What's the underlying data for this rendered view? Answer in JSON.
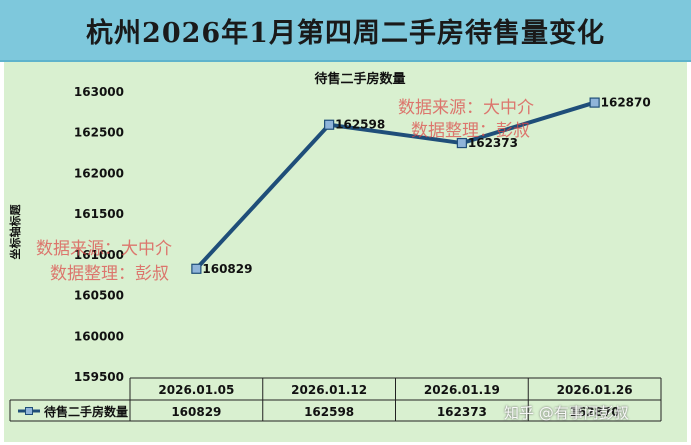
{
  "banner_title": "杭州2026年1月第四周二手房待售量变化",
  "watermarks": {
    "top_source": "数据来源：大中介",
    "top_editor": "数据整理：彭叔",
    "left_source": "数据来源：大中介",
    "left_editor": "数据整理：彭叔",
    "footer": "知乎 @有事问彭叔"
  },
  "colors": {
    "banner_bg": "#7ec8dc",
    "panel_bg": "#d9f0d0",
    "series_line": "#1f4e79",
    "marker_fill": "#8fb4d9"
  },
  "chart_data": {
    "type": "line",
    "title": "待售二手房数量",
    "ylabel": "坐标轴标题",
    "xlabel": "",
    "categories": [
      "2026.01.05",
      "2026.01.12",
      "2026.01.19",
      "2026.01.26"
    ],
    "series": [
      {
        "name": "待售二手房数量",
        "values": [
          160829,
          162598,
          162373,
          162870
        ]
      }
    ],
    "ylim": [
      159500,
      163000
    ],
    "y_ticks": [
      163000,
      162500,
      162000,
      161500,
      161000,
      160500,
      160000,
      159500
    ],
    "data_labels": [
      "160829",
      "162598",
      "162373",
      "162870"
    ],
    "grid": false,
    "legend": "data-table-bottom",
    "data_table": true
  }
}
